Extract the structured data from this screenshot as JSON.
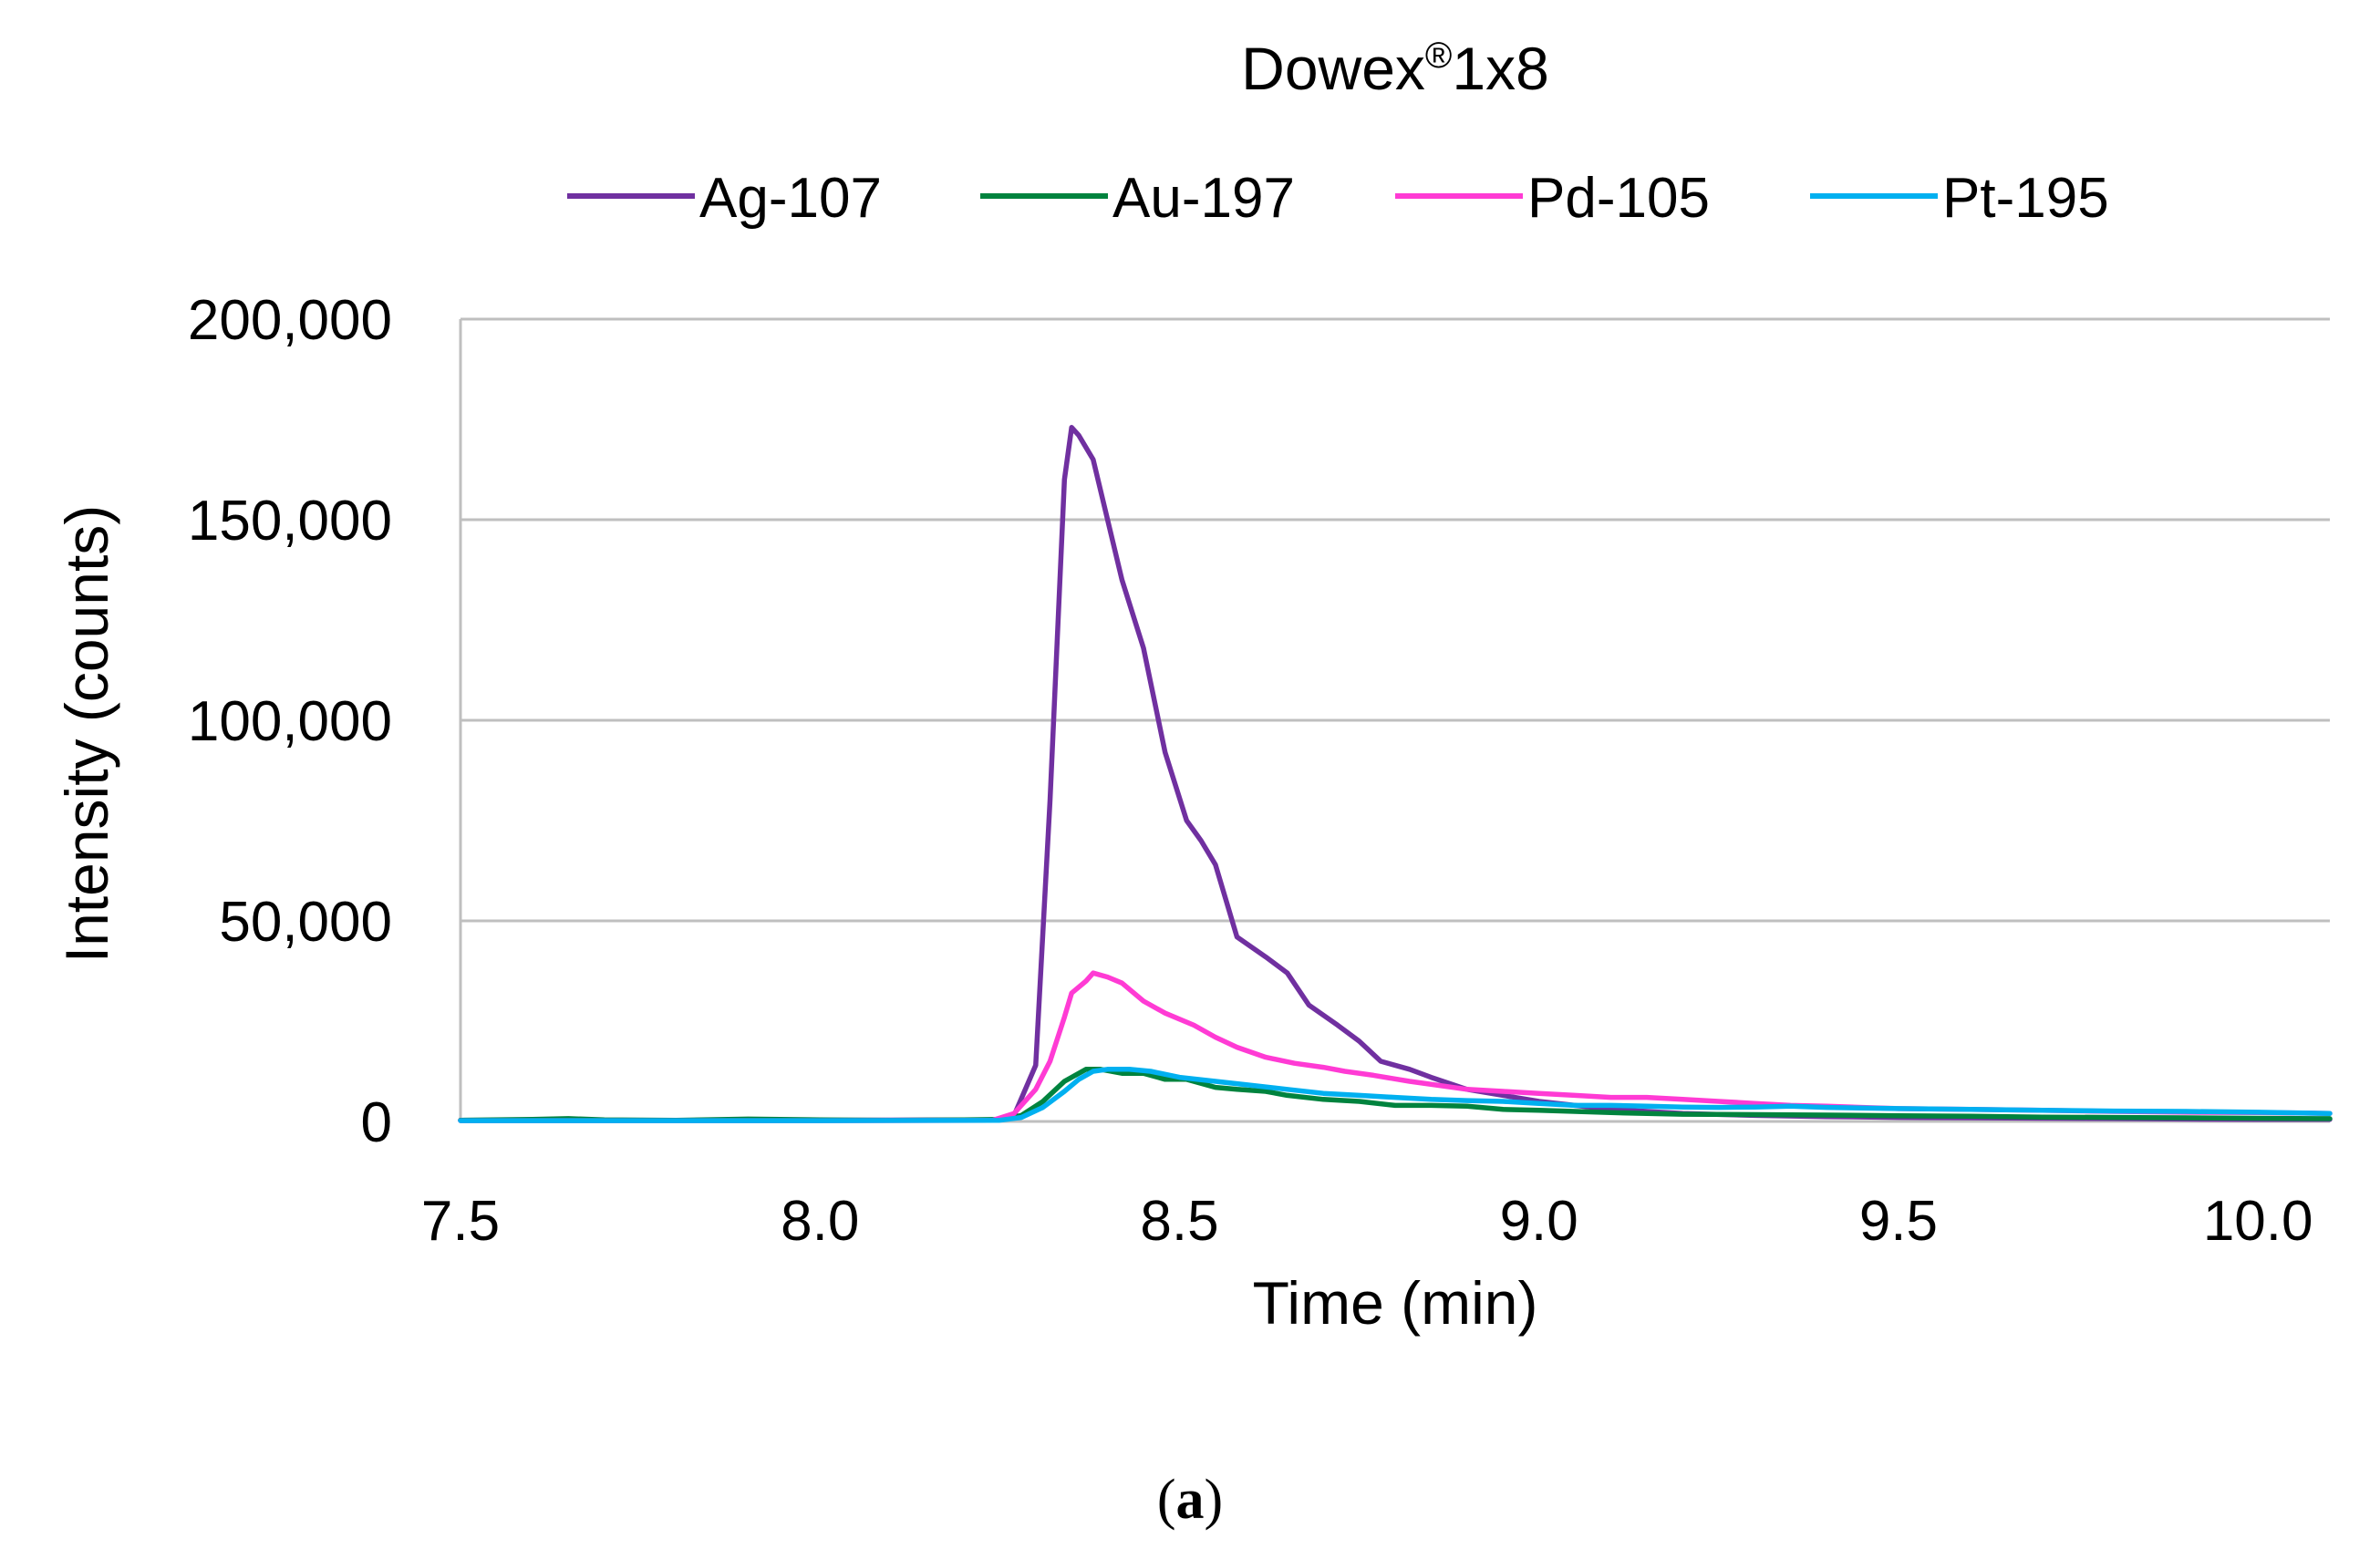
{
  "chart_data": {
    "type": "line",
    "title": "Dowex",
    "title_superscript": "®",
    "title_suffix": "1x8",
    "xlabel": "Time (min)",
    "ylabel": "Intensity (counts)",
    "xlim": [
      7.5,
      10.1
    ],
    "ylim": [
      0,
      200000
    ],
    "x_ticks": [
      7.5,
      8.0,
      8.5,
      9.0,
      9.5,
      10.0
    ],
    "x_tick_labels": [
      "7.5",
      "8.0",
      "8.5",
      "9.0",
      "9.5",
      "10.0"
    ],
    "y_ticks": [
      0,
      50000,
      100000,
      150000,
      200000
    ],
    "y_tick_labels": [
      "0",
      "50,000",
      "100,000",
      "150,000",
      "200,000"
    ],
    "grid": "horizontal",
    "legend_position": "top",
    "series": [
      {
        "name": "Ag-107",
        "color": "#7030A0",
        "points": [
          [
            7.5,
            300
          ],
          [
            8.0,
            300
          ],
          [
            8.25,
            400
          ],
          [
            8.27,
            1500
          ],
          [
            8.3,
            14000
          ],
          [
            8.32,
            80000
          ],
          [
            8.34,
            160000
          ],
          [
            8.35,
            173000
          ],
          [
            8.36,
            171000
          ],
          [
            8.38,
            165000
          ],
          [
            8.4,
            150000
          ],
          [
            8.42,
            135000
          ],
          [
            8.45,
            118000
          ],
          [
            8.48,
            92000
          ],
          [
            8.51,
            75000
          ],
          [
            8.53,
            70000
          ],
          [
            8.55,
            64000
          ],
          [
            8.58,
            46000
          ],
          [
            8.62,
            41000
          ],
          [
            8.65,
            37000
          ],
          [
            8.68,
            29000
          ],
          [
            8.72,
            24000
          ],
          [
            8.75,
            20000
          ],
          [
            8.78,
            15000
          ],
          [
            8.82,
            13000
          ],
          [
            8.85,
            11000
          ],
          [
            8.9,
            8000
          ],
          [
            8.95,
            6500
          ],
          [
            9.0,
            5000
          ],
          [
            9.05,
            4000
          ],
          [
            9.1,
            3000
          ],
          [
            9.15,
            2500
          ],
          [
            9.2,
            2000
          ],
          [
            9.3,
            1500
          ],
          [
            9.4,
            1200
          ],
          [
            9.5,
            1000
          ],
          [
            9.6,
            900
          ],
          [
            9.7,
            800
          ],
          [
            9.8,
            700
          ],
          [
            9.9,
            600
          ],
          [
            10.0,
            500
          ],
          [
            10.1,
            500
          ]
        ]
      },
      {
        "name": "Au-197",
        "color": "#00833E",
        "points": [
          [
            7.5,
            300
          ],
          [
            7.6,
            500
          ],
          [
            7.65,
            700
          ],
          [
            7.7,
            400
          ],
          [
            7.8,
            300
          ],
          [
            7.9,
            600
          ],
          [
            8.0,
            400
          ],
          [
            8.1,
            300
          ],
          [
            8.2,
            400
          ],
          [
            8.25,
            500
          ],
          [
            8.28,
            1500
          ],
          [
            8.31,
            5000
          ],
          [
            8.34,
            10000
          ],
          [
            8.37,
            13000
          ],
          [
            8.39,
            13000
          ],
          [
            8.42,
            12000
          ],
          [
            8.45,
            12000
          ],
          [
            8.48,
            10500
          ],
          [
            8.51,
            10500
          ],
          [
            8.55,
            8500
          ],
          [
            8.58,
            8000
          ],
          [
            8.62,
            7500
          ],
          [
            8.65,
            6500
          ],
          [
            8.7,
            5500
          ],
          [
            8.75,
            5000
          ],
          [
            8.8,
            4000
          ],
          [
            8.85,
            4000
          ],
          [
            8.9,
            3800
          ],
          [
            8.95,
            3000
          ],
          [
            9.0,
            2800
          ],
          [
            9.05,
            2500
          ],
          [
            9.1,
            2200
          ],
          [
            9.15,
            2000
          ],
          [
            9.2,
            1800
          ],
          [
            9.3,
            1700
          ],
          [
            9.4,
            1600
          ],
          [
            9.5,
            1400
          ],
          [
            9.6,
            1300
          ],
          [
            9.7,
            1100
          ],
          [
            9.8,
            1000
          ],
          [
            9.9,
            900
          ],
          [
            10.0,
            800
          ],
          [
            10.1,
            700
          ]
        ]
      },
      {
        "name": "Pd-105",
        "color": "#FF3BD4",
        "points": [
          [
            7.5,
            200
          ],
          [
            8.0,
            200
          ],
          [
            8.24,
            300
          ],
          [
            8.27,
            2000
          ],
          [
            8.3,
            8000
          ],
          [
            8.32,
            15000
          ],
          [
            8.34,
            26000
          ],
          [
            8.35,
            32000
          ],
          [
            8.37,
            35000
          ],
          [
            8.38,
            37000
          ],
          [
            8.4,
            36000
          ],
          [
            8.42,
            34500
          ],
          [
            8.45,
            30000
          ],
          [
            8.48,
            27000
          ],
          [
            8.52,
            24000
          ],
          [
            8.55,
            21000
          ],
          [
            8.58,
            18500
          ],
          [
            8.62,
            16000
          ],
          [
            8.66,
            14500
          ],
          [
            8.7,
            13500
          ],
          [
            8.73,
            12500
          ],
          [
            8.77,
            11500
          ],
          [
            8.82,
            10000
          ],
          [
            8.86,
            9000
          ],
          [
            8.9,
            8000
          ],
          [
            8.95,
            7500
          ],
          [
            9.0,
            7000
          ],
          [
            9.05,
            6500
          ],
          [
            9.1,
            6000
          ],
          [
            9.15,
            6000
          ],
          [
            9.2,
            5500
          ],
          [
            9.25,
            5000
          ],
          [
            9.3,
            4500
          ],
          [
            9.35,
            4000
          ],
          [
            9.4,
            3800
          ],
          [
            9.45,
            3500
          ],
          [
            9.5,
            3200
          ],
          [
            9.6,
            3000
          ],
          [
            9.7,
            2800
          ],
          [
            9.8,
            2500
          ],
          [
            9.9,
            2300
          ],
          [
            10.0,
            2200
          ],
          [
            10.1,
            2000
          ]
        ]
      },
      {
        "name": "Pt-195",
        "color": "#00B0F0",
        "points": [
          [
            7.5,
            200
          ],
          [
            8.0,
            200
          ],
          [
            8.25,
            300
          ],
          [
            8.28,
            1000
          ],
          [
            8.31,
            3500
          ],
          [
            8.34,
            7500
          ],
          [
            8.36,
            10500
          ],
          [
            8.38,
            12500
          ],
          [
            8.4,
            13000
          ],
          [
            8.43,
            13000
          ],
          [
            8.46,
            12500
          ],
          [
            8.5,
            11000
          ],
          [
            8.55,
            10000
          ],
          [
            8.6,
            9000
          ],
          [
            8.65,
            8000
          ],
          [
            8.7,
            7000
          ],
          [
            8.75,
            6500
          ],
          [
            8.8,
            6000
          ],
          [
            8.85,
            5500
          ],
          [
            8.9,
            5200
          ],
          [
            8.95,
            5000
          ],
          [
            9.0,
            4500
          ],
          [
            9.05,
            4000
          ],
          [
            9.1,
            4000
          ],
          [
            9.15,
            3800
          ],
          [
            9.2,
            3600
          ],
          [
            9.25,
            3500
          ],
          [
            9.3,
            3600
          ],
          [
            9.35,
            3800
          ],
          [
            9.4,
            3500
          ],
          [
            9.5,
            3200
          ],
          [
            9.6,
            3000
          ],
          [
            9.7,
            2800
          ],
          [
            9.8,
            2600
          ],
          [
            9.9,
            2500
          ],
          [
            10.0,
            2300
          ],
          [
            10.1,
            2000
          ]
        ]
      }
    ]
  },
  "panel_label": "a",
  "panel_label_open": "(",
  "panel_label_close": ")"
}
